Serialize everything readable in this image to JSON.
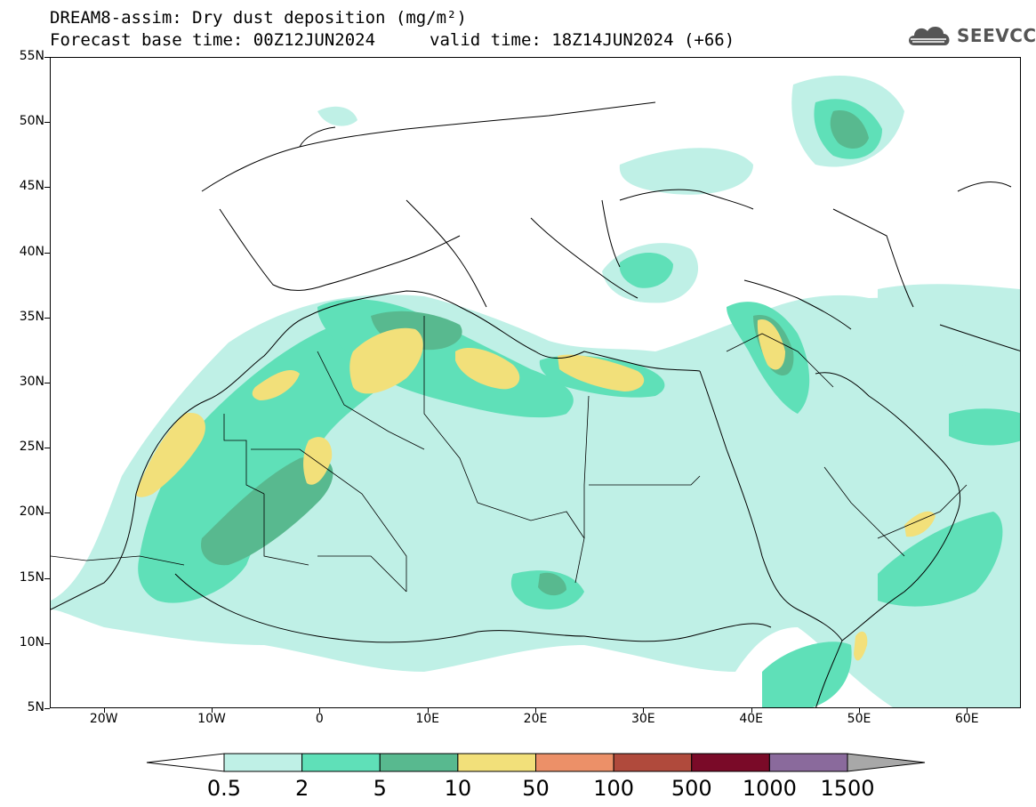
{
  "title": {
    "line1": "DREAM8-assim: Dry dust deposition (mg/m²)",
    "line2_base": "Forecast base time: 00Z12JUN2024",
    "line2_valid": "valid time: 18Z14JUN2024 (+66)"
  },
  "logo": {
    "text": "SEEVCCC",
    "icon": "cloud-icon"
  },
  "axes": {
    "latitude_labels": [
      "55N",
      "50N",
      "45N",
      "40N",
      "35N",
      "30N",
      "25N",
      "20N",
      "15N",
      "10N",
      "5N"
    ],
    "latitude_values": [
      55,
      50,
      45,
      40,
      35,
      30,
      25,
      20,
      15,
      10,
      5
    ],
    "longitude_labels": [
      "20W",
      "10W",
      "0",
      "10E",
      "20E",
      "30E",
      "40E",
      "50E",
      "60E"
    ],
    "longitude_values": [
      -20,
      -10,
      0,
      10,
      20,
      30,
      40,
      50,
      60
    ],
    "lon_range": [
      -25,
      65
    ],
    "lat_range": [
      5,
      55
    ]
  },
  "colorbar": {
    "labels": [
      "0.5",
      "2",
      "5",
      "10",
      "50",
      "100",
      "500",
      "1000",
      "1500"
    ],
    "colors": [
      "#bff0e6",
      "#5fe0b8",
      "#58b98f",
      "#f2e07a",
      "#ec9068",
      "#b04a3c",
      "#7a0a28",
      "#8a6a9c"
    ],
    "under_color": "#ffffff",
    "over_color": "#a8a8a8"
  },
  "colors": {
    "coastline": "#000000",
    "frame": "#000000"
  }
}
